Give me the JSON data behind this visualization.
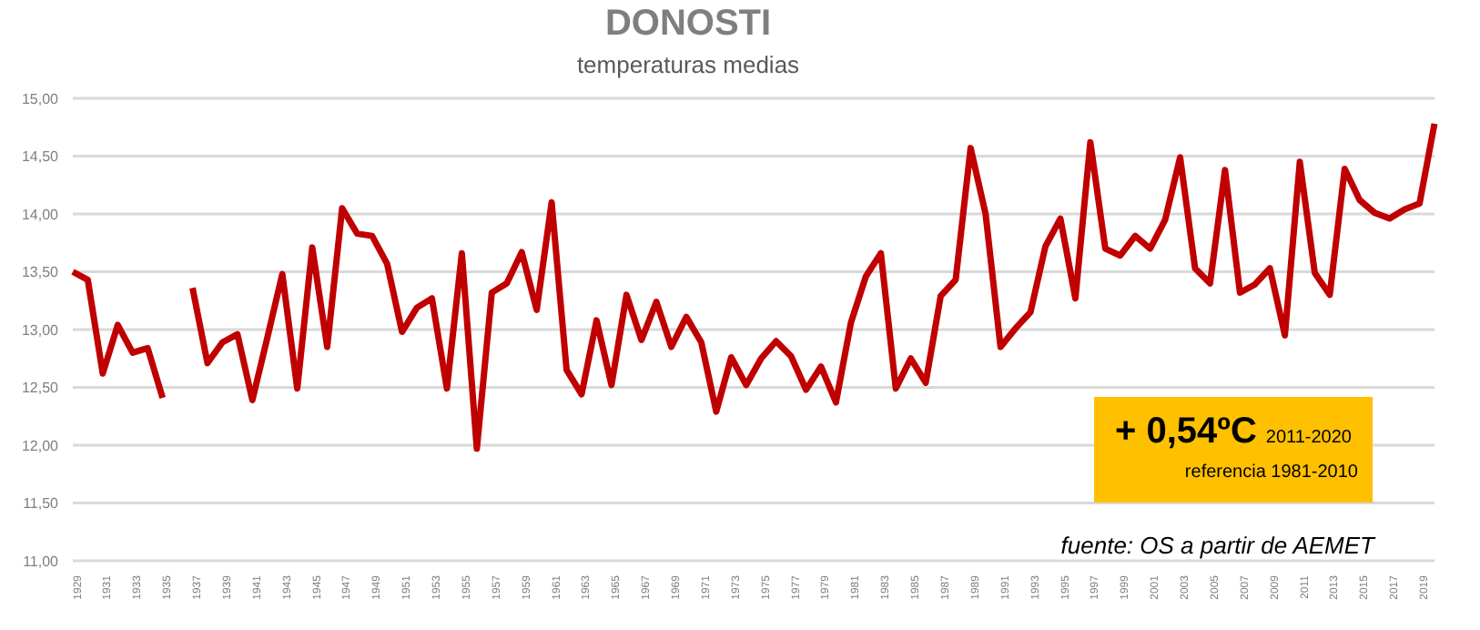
{
  "chart_data": {
    "type": "line",
    "title": "DONOSTI",
    "subtitle": "temperaturas medias",
    "categories": [
      "1929",
      null,
      "1931",
      null,
      "1933",
      null,
      "1935",
      null,
      "1937",
      null,
      "1939",
      null,
      "1941",
      null,
      "1943",
      null,
      "1945",
      null,
      "1947",
      null,
      "1949",
      null,
      "1951",
      null,
      "1953",
      null,
      "1955",
      null,
      "1957",
      null,
      "1959",
      null,
      "1961",
      null,
      "1963",
      null,
      "1965",
      null,
      "1967",
      null,
      "1969",
      null,
      "1971",
      null,
      "1973",
      null,
      "1975",
      null,
      "1977",
      null,
      "1979",
      null,
      "1981",
      null,
      "1983",
      null,
      "1985",
      null,
      "1987",
      null,
      "1989",
      null,
      "1991",
      null,
      "1993",
      null,
      "1995",
      null,
      "1997",
      null,
      "1999",
      null,
      "2001",
      null,
      "2003",
      null,
      "2005",
      null,
      "2007",
      null,
      "2009",
      null,
      "2011",
      null,
      "2013",
      null,
      "2015",
      null,
      "2017",
      null,
      "2019",
      null
    ],
    "series": [
      {
        "color": "#c00000",
        "values": [
          13.5,
          13.43,
          12.62,
          13.04,
          12.8,
          12.84,
          12.41,
          null,
          13.36,
          12.71,
          12.89,
          12.96,
          12.39,
          12.93,
          13.48,
          12.49,
          13.71,
          12.85,
          14.05,
          13.83,
          13.81,
          13.57,
          12.98,
          13.19,
          13.27,
          12.49,
          13.66,
          11.97,
          13.32,
          13.4,
          13.67,
          13.17,
          14.1,
          12.65,
          12.44,
          13.08,
          12.52,
          13.3,
          12.91,
          13.24,
          12.85,
          13.11,
          12.89,
          12.29,
          12.76,
          12.52,
          12.75,
          12.9,
          12.77,
          12.48,
          12.68,
          12.37,
          13.06,
          13.46,
          13.66,
          12.49,
          12.75,
          12.54,
          13.29,
          13.43,
          14.57,
          14.0,
          12.85,
          13.01,
          13.15,
          13.72,
          13.96,
          13.27,
          14.62,
          13.7,
          13.64,
          13.81,
          13.7,
          13.95,
          14.49,
          13.53,
          13.4,
          14.38,
          13.32,
          13.39,
          13.53,
          12.95,
          14.45,
          13.49,
          13.3,
          14.39,
          14.12,
          14.01,
          13.96,
          14.04,
          14.09,
          14.78
        ]
      }
    ],
    "ylim": [
      11,
      15
    ],
    "yticks": [
      {
        "value": 11,
        "label": "11,00"
      },
      {
        "value": 11.5,
        "label": "11,50"
      },
      {
        "value": 12,
        "label": "12,00"
      },
      {
        "value": 12.5,
        "label": "12,50"
      },
      {
        "value": 13,
        "label": "13,00"
      },
      {
        "value": 13.5,
        "label": "13,50"
      },
      {
        "value": 14,
        "label": "14,00"
      },
      {
        "value": 14.5,
        "label": "14,50"
      },
      {
        "value": 15,
        "label": "15,00"
      }
    ],
    "grid": "y",
    "marker": "none",
    "annotations": [
      "+ 0,54ºC",
      "2011-2020",
      "referencia 1981-2010",
      "fuente: OS a partir de AEMET"
    ]
  }
}
